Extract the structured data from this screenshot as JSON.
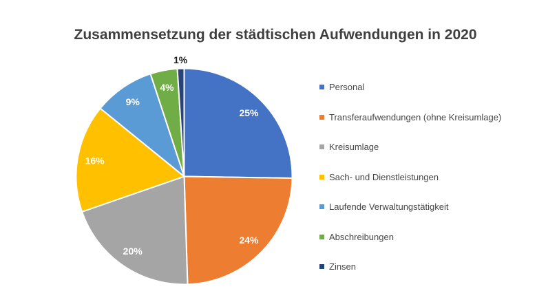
{
  "chart_data": {
    "type": "pie",
    "title": "Zusammensetzung der städtischen Aufwendungen in 2020",
    "legend_position": "right",
    "categories": [
      "Personal",
      "Transferaufwendungen (ohne Kreisumlage)",
      "Kreisumlage",
      "Sach- und Dienstleistungen",
      "Laufende Verwaltungstätigkeit",
      "Abschreibungen",
      "Zinsen"
    ],
    "values": [
      25,
      24,
      20,
      16,
      9,
      4,
      1
    ],
    "labels": [
      "25%",
      "24%",
      "20%",
      "16%",
      "9%",
      "4%",
      "1%"
    ],
    "colors": [
      "#4472C4",
      "#ED7D31",
      "#A5A5A5",
      "#FFC000",
      "#5B9BD5",
      "#70AD47",
      "#264478"
    ],
    "start_angle_deg": 0,
    "direction": "clockwise",
    "slice_border_color": "#FFFFFF",
    "inside_label_color": "#FFFFFF",
    "outside_label_color": "#1A1A1A",
    "outside_label_threshold": 2,
    "title_color": "#3F3F3F",
    "legend_text_color": "#464646",
    "background_color": "#FFFFFF"
  }
}
